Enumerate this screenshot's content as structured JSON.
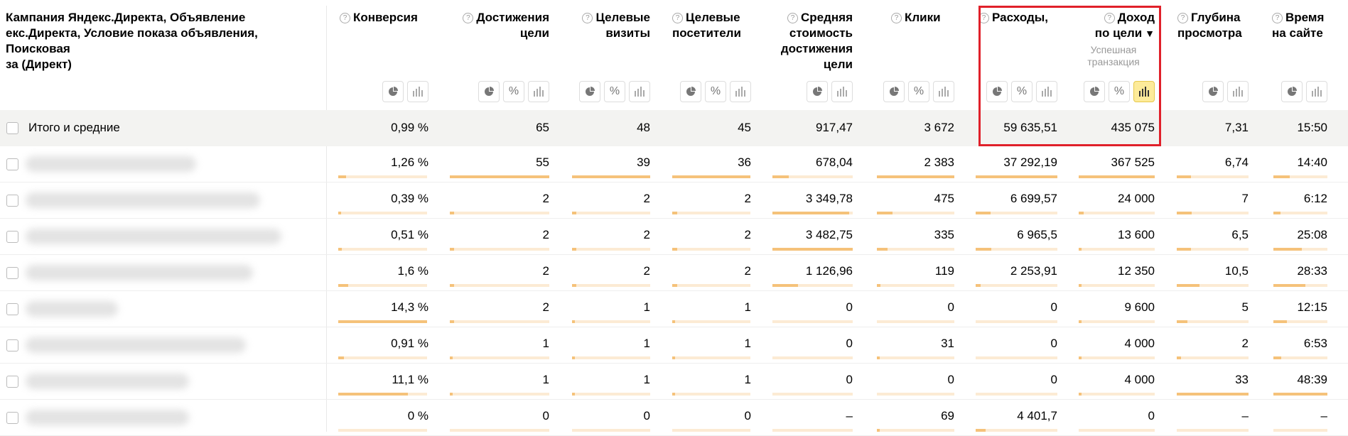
{
  "header": {
    "dimension_title": "Кампания Яндекс.Директа, Объявление\nекс.Директа, Условие показа объявления, Поисковая\nза (Директ)",
    "columns": [
      {
        "label": "Конверсия",
        "align": "left"
      },
      {
        "label": "Достижения\nцели",
        "align": "right"
      },
      {
        "label": "Целевые\nвизиты",
        "align": "right"
      },
      {
        "label": "Целевые\nпосетители",
        "align": "left"
      },
      {
        "label": "Средняя\nстоимость\nдостижения\nцели",
        "align": "right"
      },
      {
        "label": "Клики",
        "align": "left"
      },
      {
        "label": "Расходы,",
        "align": "left"
      },
      {
        "label": "Доход\nпо цели",
        "align": "right",
        "sub": "Успешная\nтранзакция",
        "sort_icon": "▼"
      },
      {
        "label": "Глубина\nпросмотра",
        "align": "left"
      },
      {
        "label": "Время\nна сайте",
        "align": "left"
      }
    ]
  },
  "total": {
    "label": "Итого и средние",
    "values": [
      "0,99 %",
      "65",
      "48",
      "45",
      "917,47",
      "3 672",
      "59 635,51",
      "435 075",
      "7,31",
      "15:50"
    ]
  },
  "rows": [
    {
      "values": [
        "1,26 %",
        "55",
        "39",
        "36",
        "678,04",
        "2 383",
        "37 292,19",
        "367 525",
        "6,74",
        "14:40"
      ],
      "fill": [
        0.09,
        1.0,
        1.0,
        1.0,
        0.2,
        1.0,
        1.0,
        1.0,
        0.2,
        0.3
      ]
    },
    {
      "values": [
        "0,39 %",
        "2",
        "2",
        "2",
        "3 349,78",
        "475",
        "6 699,57",
        "24 000",
        "7",
        "6:12"
      ],
      "fill": [
        0.03,
        0.04,
        0.05,
        0.06,
        0.96,
        0.2,
        0.18,
        0.07,
        0.21,
        0.13
      ]
    },
    {
      "values": [
        "0,51 %",
        "2",
        "2",
        "2",
        "3 482,75",
        "335",
        "6 965,5",
        "13 600",
        "6,5",
        "25:08"
      ],
      "fill": [
        0.04,
        0.04,
        0.05,
        0.06,
        1.0,
        0.14,
        0.19,
        0.04,
        0.2,
        0.52
      ]
    },
    {
      "values": [
        "1,6 %",
        "2",
        "2",
        "2",
        "1 126,96",
        "119",
        "2 253,91",
        "12 350",
        "10,5",
        "28:33"
      ],
      "fill": [
        0.11,
        0.04,
        0.05,
        0.06,
        0.32,
        0.05,
        0.06,
        0.03,
        0.32,
        0.59
      ]
    },
    {
      "values": [
        "14,3 %",
        "2",
        "1",
        "1",
        "0",
        "0",
        "0",
        "9 600",
        "5",
        "12:15"
      ],
      "fill": [
        1.0,
        0.04,
        0.03,
        0.03,
        0,
        0,
        0,
        0.03,
        0.15,
        0.25
      ]
    },
    {
      "values": [
        "0,91 %",
        "1",
        "1",
        "1",
        "0",
        "31",
        "0",
        "4 000",
        "2",
        "6:53"
      ],
      "fill": [
        0.06,
        0.02,
        0.03,
        0.03,
        0,
        0.01,
        0,
        0.01,
        0.06,
        0.14
      ]
    },
    {
      "values": [
        "11,1 %",
        "1",
        "1",
        "1",
        "0",
        "0",
        "0",
        "4 000",
        "33",
        "48:39"
      ],
      "fill": [
        0.78,
        0.02,
        0.03,
        0.03,
        0,
        0,
        0,
        0.01,
        1.0,
        1.0
      ]
    },
    {
      "values": [
        "0 %",
        "0",
        "0",
        "0",
        "–",
        "69",
        "4 401,7",
        "0",
        "–",
        "–"
      ],
      "fill": [
        0,
        0,
        0,
        0,
        0,
        0.03,
        0.12,
        0,
        0,
        0
      ]
    }
  ],
  "colors": {
    "bar": "#f5c27a",
    "bar_bg": "#fcebd4",
    "highlight": "#e0202a",
    "active_btn": "#fdeb9a"
  }
}
